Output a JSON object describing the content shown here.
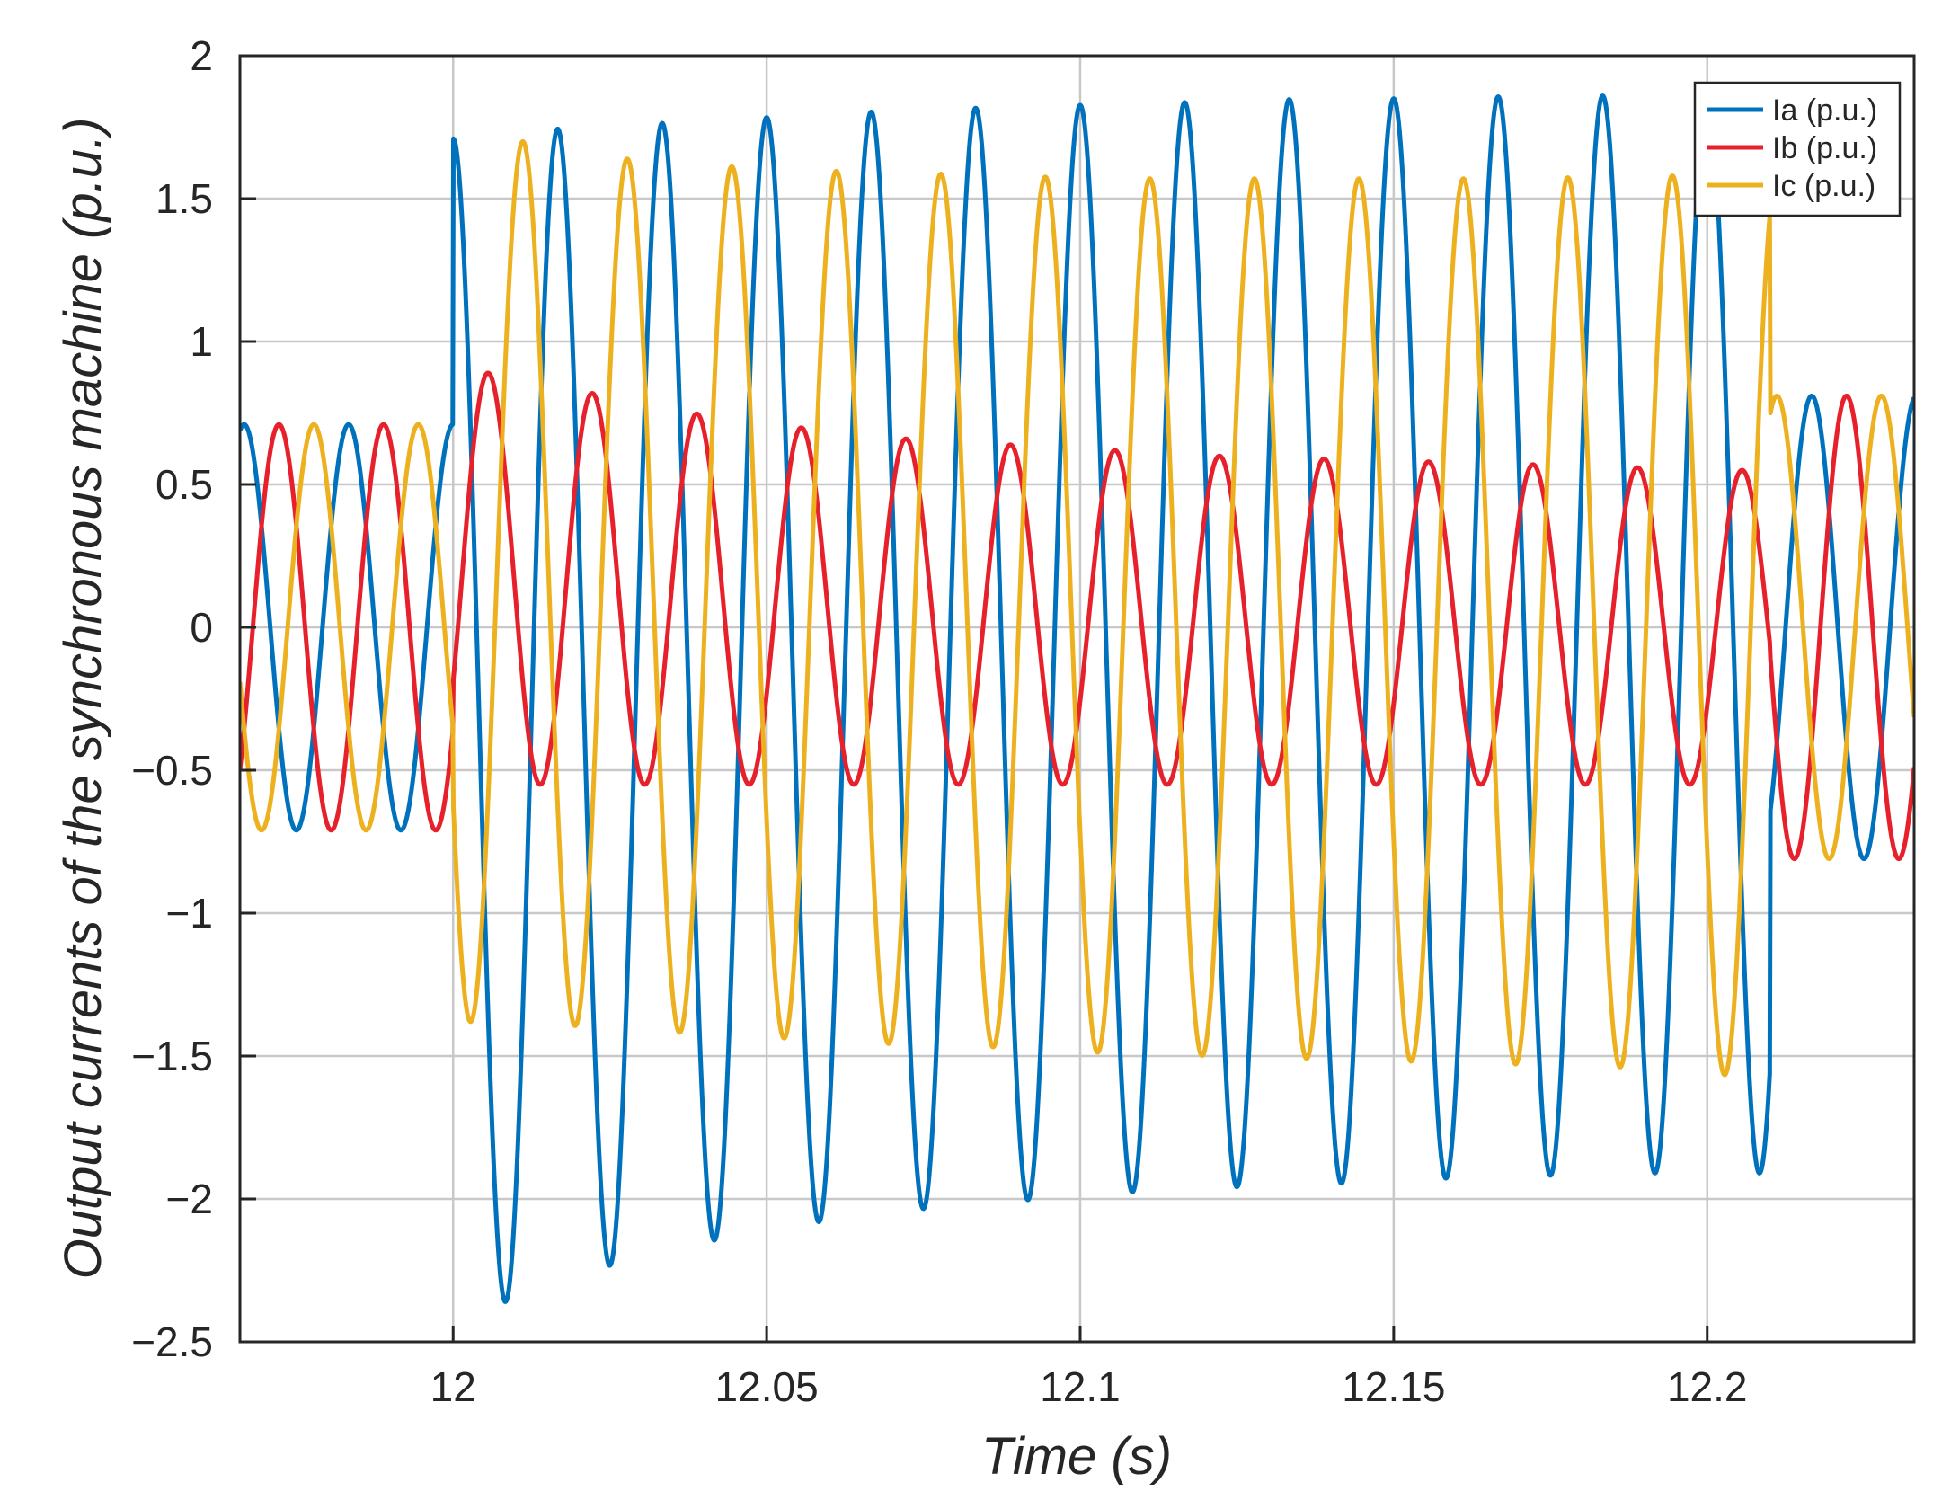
{
  "chart_data": {
    "type": "line",
    "xlabel": "Time (s)",
    "ylabel": "Output currents of the synchronous machine (p.u.)",
    "xlim": [
      11.966,
      12.233
    ],
    "ylim": [
      -2.5,
      2
    ],
    "xticks": [
      12,
      12.05,
      12.1,
      12.15,
      12.2
    ],
    "xtick_labels": [
      "12",
      "12.05",
      "12.1",
      "12.15",
      "12.2"
    ],
    "yticks": [
      2,
      1.5,
      1,
      0.5,
      0,
      -0.5,
      -1,
      -1.5,
      -2,
      -2.5
    ],
    "ytick_labels": [
      "2",
      "1.5",
      "1",
      "0.5",
      "0",
      "−0.5",
      "−1",
      "−1.5",
      "−2",
      "−2.5"
    ],
    "grid": true,
    "legend_position": "top-right",
    "frequency_hz": 60,
    "event_times": [
      12.0,
      12.21
    ],
    "series": [
      {
        "name": "Ia (p.u.)",
        "color": "#0072BD",
        "phase_deg": 0,
        "pre_event": {
          "amplitude": 0.71,
          "offset": 0
        },
        "during_event": {
          "times": [
            12.004,
            12.013,
            12.022,
            12.038,
            12.055,
            12.072,
            12.088,
            12.105,
            12.122,
            12.138,
            12.155,
            12.172,
            12.188,
            12.205
          ],
          "maxima": [
            1.71,
            1.74,
            1.75,
            1.77,
            1.79,
            1.81,
            1.82,
            1.83,
            1.84,
            1.85,
            1.85,
            1.86,
            1.86,
            1.86
          ],
          "minima": [
            -2.36,
            -2.36,
            -2.25,
            -2.16,
            -2.09,
            -2.04,
            -2.01,
            -1.98,
            -1.96,
            -1.95,
            -1.93,
            -1.92,
            -1.91,
            -1.91
          ]
        },
        "post_event": {
          "amplitude": 0.81,
          "offset": 0
        }
      },
      {
        "name": "Ib (p.u.)",
        "color": "#E6212B",
        "phase_deg": -120,
        "pre_event": {
          "amplitude": 0.71,
          "offset": 0
        },
        "during_event": {
          "times": [
            12.004,
            12.013,
            12.022,
            12.038,
            12.055,
            12.072,
            12.088,
            12.105,
            12.122,
            12.138,
            12.155,
            12.172,
            12.188,
            12.205
          ],
          "maxima": [
            0.89,
            0.89,
            0.82,
            0.75,
            0.7,
            0.66,
            0.64,
            0.62,
            0.6,
            0.59,
            0.58,
            0.57,
            0.56,
            0.55
          ],
          "minima": [
            -0.55,
            -0.55,
            -0.55,
            -0.55,
            -0.55,
            -0.55,
            -0.55,
            -0.55,
            -0.55,
            -0.55,
            -0.55,
            -0.55,
            -0.55,
            -0.55
          ]
        },
        "post_event": {
          "amplitude": 0.81,
          "offset": 0
        }
      },
      {
        "name": "Ic (p.u.)",
        "color": "#EDB120",
        "phase_deg": 120,
        "pre_event": {
          "amplitude": 0.71,
          "offset": 0
        },
        "during_event": {
          "times": [
            12.004,
            12.013,
            12.022,
            12.038,
            12.055,
            12.072,
            12.088,
            12.105,
            12.122,
            12.138,
            12.155,
            12.172,
            12.188,
            12.205
          ],
          "maxima": [
            1.7,
            1.7,
            1.65,
            1.62,
            1.6,
            1.59,
            1.58,
            1.57,
            1.57,
            1.57,
            1.57,
            1.57,
            1.58,
            1.58
          ],
          "minima": [
            -1.38,
            -1.38,
            -1.4,
            -1.42,
            -1.44,
            -1.46,
            -1.47,
            -1.49,
            -1.5,
            -1.51,
            -1.52,
            -1.53,
            -1.54,
            -1.57
          ]
        },
        "post_event": {
          "amplitude": 0.81,
          "offset": 0
        }
      }
    ]
  }
}
